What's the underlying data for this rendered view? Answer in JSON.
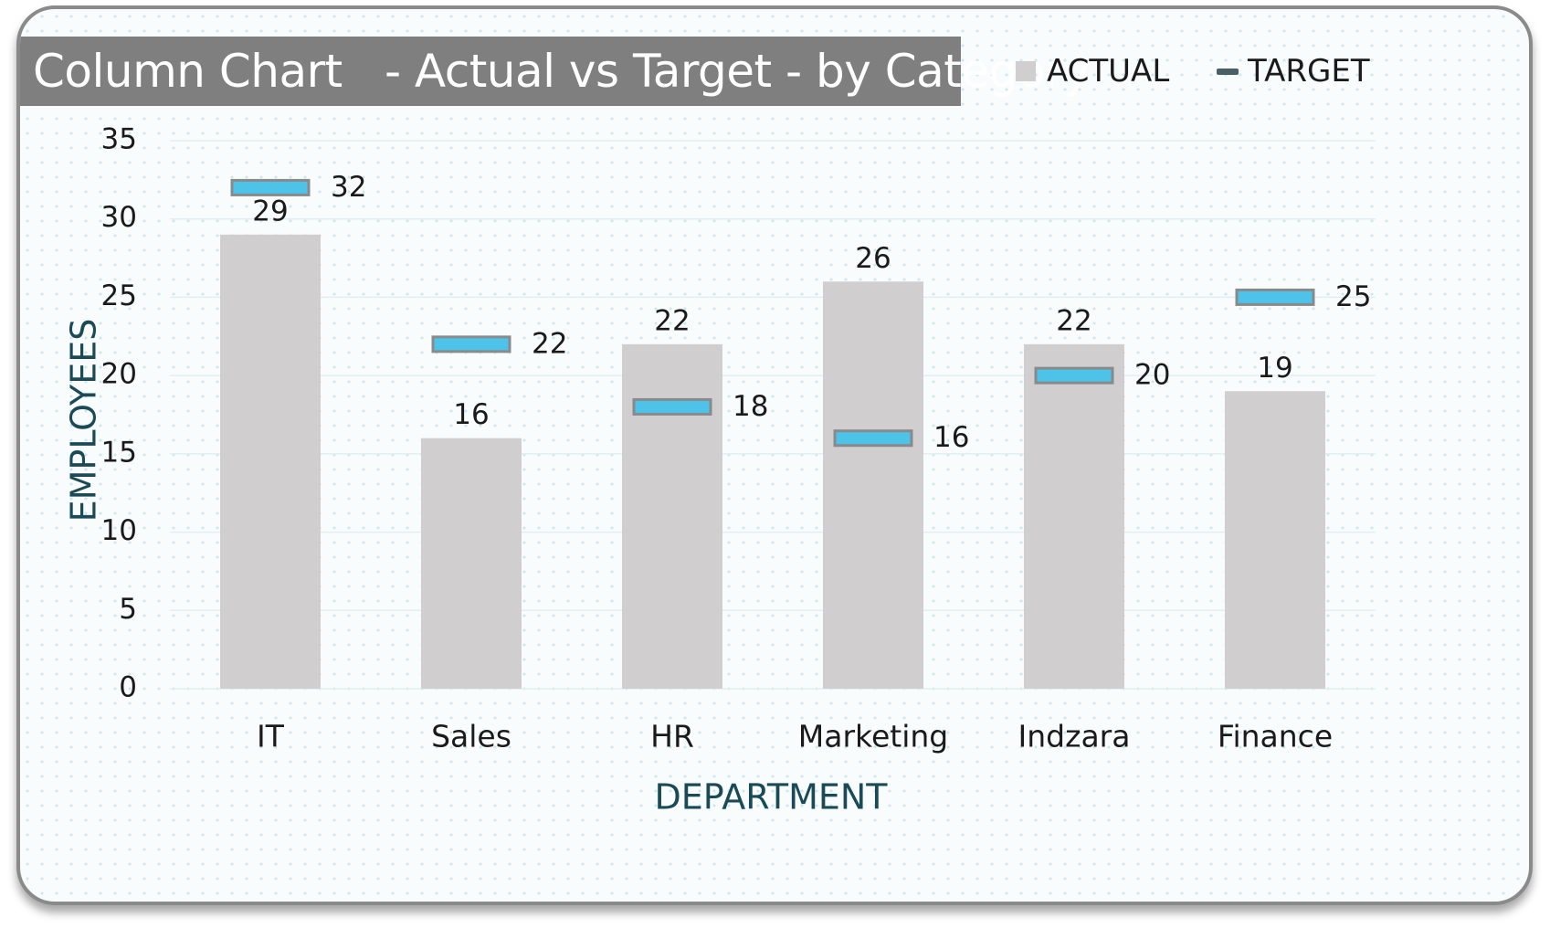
{
  "chart_data": {
    "type": "bar",
    "title": "Column Chart   - Actual vs Target - by Category",
    "xlabel": "DEPARTMENT",
    "ylabel": "EMPLOYEES",
    "categories": [
      "IT",
      "Sales",
      "HR",
      "Marketing",
      "Indzara",
      "Finance"
    ],
    "series": [
      {
        "name": "ACTUAL",
        "values": [
          29,
          16,
          22,
          26,
          22,
          19
        ],
        "color": "#d0cecf",
        "style": "column"
      },
      {
        "name": "TARGET",
        "values": [
          32,
          22,
          18,
          16,
          20,
          25
        ],
        "color": "#4dc3ea",
        "style": "marker-bar"
      }
    ],
    "ylim": [
      0,
      35
    ],
    "yticks": [
      0,
      5,
      10,
      15,
      20,
      25,
      30,
      35
    ],
    "grid": true,
    "legend_position": "top-right"
  },
  "colors": {
    "title_bg": "#7f7f7f",
    "axis_title": "#1b4a57",
    "target_outline": "#8a8a8a"
  }
}
